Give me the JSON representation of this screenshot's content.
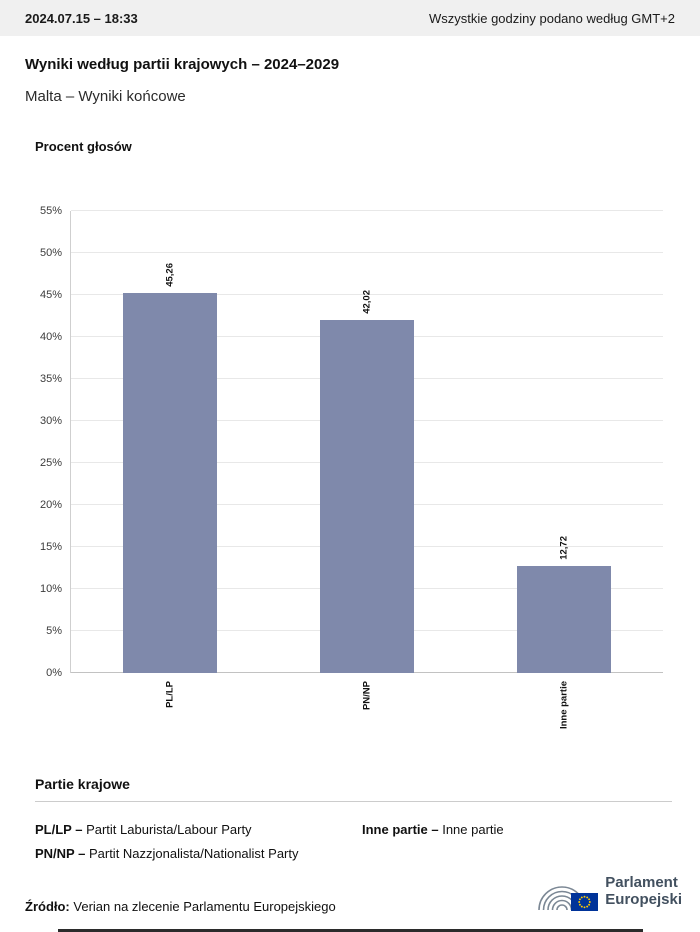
{
  "header": {
    "datetime": "2024.07.15 – 18:33",
    "timezone_note": "Wszystkie godziny podano według GMT+2"
  },
  "titles": {
    "main": "Wyniki według partii krajowych – 2024–2029",
    "subtitle": "Malta – Wyniki końcowe"
  },
  "chart_data": {
    "type": "bar",
    "title": "Procent głosów",
    "categories": [
      "PL/LP",
      "PN/NP",
      "Inne partie"
    ],
    "values": [
      45.26,
      42.02,
      12.72
    ],
    "value_labels": [
      "45,26",
      "42,02",
      "12,72"
    ],
    "xlabel": "",
    "ylabel": "Procent głosów",
    "ylim": [
      0,
      55
    ],
    "ytick_step": 5,
    "ytick_labels": [
      "0%",
      "5%",
      "10%",
      "15%",
      "20%",
      "25%",
      "30%",
      "35%",
      "40%",
      "45%",
      "50%",
      "55%"
    ],
    "grid": true,
    "legend_position": "none",
    "bar_color": "#7f89ab"
  },
  "legend": {
    "heading": "Partie krajowe",
    "entries": [
      {
        "abbr": "PL/LP –",
        "name": "Partit Laburista/Labour Party"
      },
      {
        "abbr": "PN/NP –",
        "name": "Partit Nazzjonalista/Nationalist Party"
      },
      {
        "abbr": "Inne partie –",
        "name": "Inne partie"
      }
    ]
  },
  "footer": {
    "source_label": "Źródło:",
    "source_text": "Verian na zlecenie Parlamentu Europejskiego",
    "logo_line1": "Parlament",
    "logo_line2": "Europejski"
  },
  "colors": {
    "eu_blue": "#003399",
    "eu_yellow": "#ffcc00",
    "logo_gray": "#7b8794"
  }
}
